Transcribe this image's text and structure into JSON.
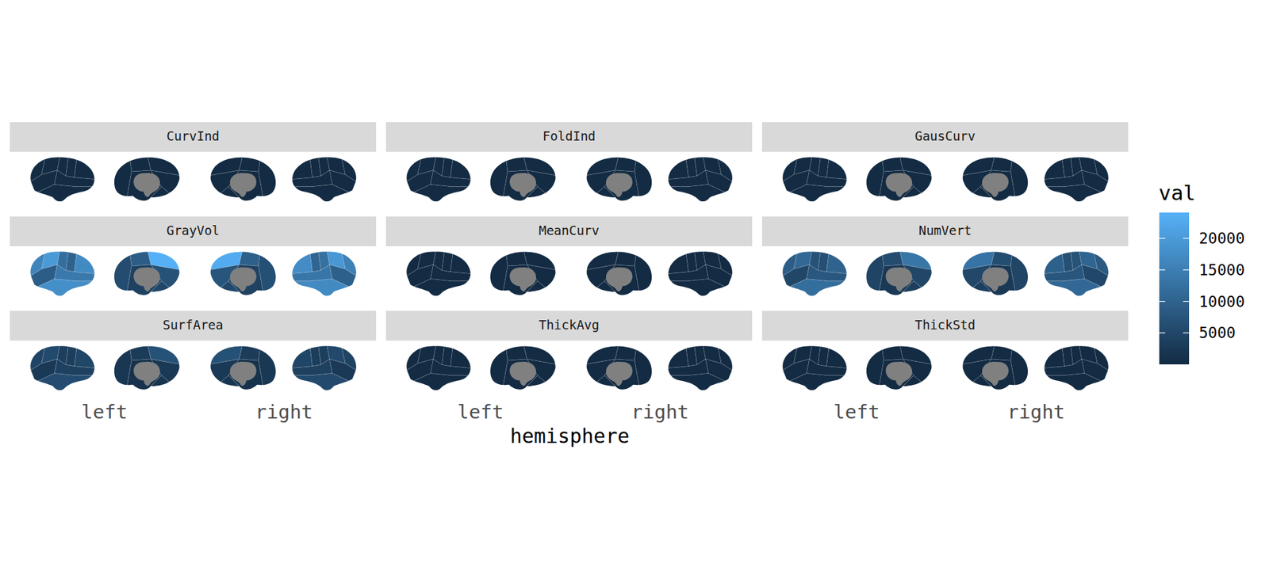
{
  "chart_data": {
    "type": "brain_atlas",
    "x_label": "hemisphere",
    "hemispheres": [
      "left",
      "right"
    ],
    "color_scale": {
      "title": "val",
      "range": [
        0,
        24100
      ],
      "ticks": [
        5000,
        10000,
        15000,
        20000
      ],
      "colors": [
        "#132B43",
        "#56B1F7"
      ]
    },
    "facets": [
      {
        "title": "CurvInd",
        "left": {
          "lateral": [
            4,
            3,
            5,
            6,
            5,
            8,
            7,
            9
          ],
          "medial": [
            3,
            4,
            2,
            1,
            3,
            2
          ]
        },
        "right": {
          "medial": [
            3,
            4,
            2,
            1,
            3,
            2
          ],
          "lateral": [
            4,
            3,
            5,
            6,
            5,
            7,
            7,
            8
          ]
        }
      },
      {
        "title": "FoldInd",
        "left": {
          "lateral": [
            15,
            12,
            20,
            25,
            18,
            30,
            28,
            40
          ],
          "medial": [
            10,
            12,
            8,
            5,
            9,
            6
          ]
        },
        "right": {
          "medial": [
            11,
            12,
            8,
            5,
            9,
            6
          ],
          "lateral": [
            14,
            12,
            21,
            24,
            18,
            29,
            27,
            38
          ]
        }
      },
      {
        "title": "GausCurv",
        "left": {
          "lateral": [
            0.15,
            0.12,
            0.2,
            0.18,
            0.16,
            0.14,
            0.17,
            0.22
          ],
          "medial": [
            0.13,
            0.15,
            0.19,
            0.2,
            0.16,
            0.25
          ]
        },
        "right": {
          "medial": [
            0.13,
            0.15,
            0.19,
            0.21,
            0.16,
            0.24
          ],
          "lateral": [
            0.15,
            0.12,
            0.2,
            0.18,
            0.16,
            0.14,
            0.17,
            0.21
          ]
        }
      },
      {
        "title": "GrayVol",
        "left": {
          "lateral": [
            16000,
            20000,
            9000,
            12000,
            10000,
            17000,
            14000,
            18000
          ],
          "medial": [
            24000,
            9000,
            6000,
            7000,
            4000,
            5000
          ]
        },
        "right": {
          "medial": [
            23000,
            9500,
            6500,
            7500,
            4200,
            5200
          ],
          "lateral": [
            15500,
            19500,
            9500,
            12500,
            10500,
            17500,
            13500,
            17000
          ]
        }
      },
      {
        "title": "MeanCurv",
        "left": {
          "lateral": [
            0.12,
            0.13,
            0.14,
            0.11,
            0.15,
            0.13,
            0.12,
            0.14
          ],
          "medial": [
            0.12,
            0.13,
            0.15,
            0.14,
            0.12,
            0.16
          ]
        },
        "right": {
          "medial": [
            0.12,
            0.13,
            0.15,
            0.14,
            0.12,
            0.16
          ],
          "lateral": [
            0.12,
            0.13,
            0.14,
            0.11,
            0.15,
            0.13,
            0.12,
            0.14
          ]
        }
      },
      {
        "title": "NumVert",
        "left": {
          "lateral": [
            9000,
            11000,
            5000,
            7000,
            6500,
            10000,
            8000,
            12000
          ],
          "medial": [
            13500,
            6000,
            4500,
            5000,
            2500,
            3500
          ]
        },
        "right": {
          "medial": [
            13000,
            6200,
            4600,
            5100,
            2600,
            3600
          ],
          "lateral": [
            8500,
            10500,
            5200,
            7200,
            6600,
            9500,
            7800,
            11000
          ]
        }
      },
      {
        "title": "SurfArea",
        "left": {
          "lateral": [
            4500,
            5500,
            2500,
            3500,
            3200,
            5000,
            4000,
            6000
          ],
          "medial": [
            7000,
            3000,
            2200,
            2500,
            1200,
            1800
          ]
        },
        "right": {
          "medial": [
            6800,
            3100,
            2300,
            2600,
            1300,
            1900
          ],
          "lateral": [
            4300,
            5300,
            2600,
            3600,
            3300,
            4800,
            3900,
            5600
          ]
        }
      },
      {
        "title": "ThickAvg",
        "left": {
          "lateral": [
            2.5,
            2.7,
            2.6,
            2.4,
            2.0,
            2.3,
            2.6,
            2.9
          ],
          "medial": [
            2.8,
            2.4,
            1.9,
            2.6,
            2.7,
            3.1
          ]
        },
        "right": {
          "medial": [
            2.8,
            2.4,
            1.9,
            2.6,
            2.7,
            3.1
          ],
          "lateral": [
            2.5,
            2.7,
            2.6,
            2.4,
            2.0,
            2.3,
            2.6,
            2.9
          ]
        }
      },
      {
        "title": "ThickStd",
        "left": {
          "lateral": [
            0.6,
            0.7,
            0.65,
            0.55,
            0.5,
            0.6,
            0.65,
            0.75
          ],
          "medial": [
            0.7,
            0.6,
            0.5,
            0.8,
            0.65,
            0.9
          ]
        },
        "right": {
          "medial": [
            0.7,
            0.6,
            0.5,
            0.8,
            0.65,
            0.9
          ],
          "lateral": [
            0.6,
            0.7,
            0.65,
            0.55,
            0.5,
            0.6,
            0.65,
            0.75
          ]
        }
      }
    ]
  }
}
